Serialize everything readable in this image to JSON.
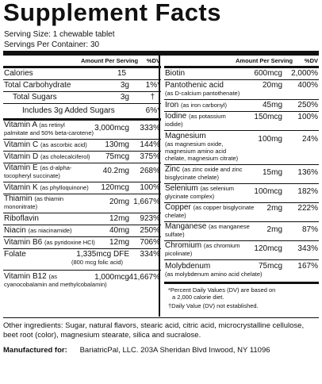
{
  "title": "Supplement Facts",
  "serving_size": "Serving Size: 1 chewable tablet",
  "servings_per_container": "Servings Per Container: 30",
  "headers": {
    "amount": "Amount Per Serving",
    "dv": "%DV"
  },
  "left": [
    {
      "name": "Calories",
      "amount": "15",
      "dv": ""
    },
    {
      "name": "Total Carbohydrate",
      "amount": "3g",
      "dv": "1%*"
    },
    {
      "name": "Total Sugars",
      "amount": "3g",
      "dv": "†"
    },
    {
      "name": "Includes 3g Added Sugars",
      "amount": "",
      "dv": "6%*"
    },
    {
      "name": "Vitamin A",
      "small": "(as retinyl",
      "sub": "palmitate and 50% beta-carotene)",
      "amount": "3,000mcg",
      "dv": "333%"
    },
    {
      "name": "Vitamin C",
      "small": "(as ascorbic acid)",
      "amount": "130mg",
      "dv": "144%"
    },
    {
      "name": "Vitamin D",
      "small": "(as cholecalciferol)",
      "amount": "75mcg",
      "dv": "375%"
    },
    {
      "name": "Vitamin E",
      "small": "(as d-alpha-",
      "sub": "tocopheryl succinate)",
      "amount": "40.2mg",
      "dv": "268%"
    },
    {
      "name": "Vitamin K",
      "small": "(as phylloquinone)",
      "amount": "120mcg",
      "dv": "100%"
    },
    {
      "name": "Thiamin",
      "small": "(as thiamin",
      "sub": "mononitrate)",
      "amount": "20mg",
      "dv": "1,667%"
    },
    {
      "name": "Riboflavin",
      "amount": "12mg",
      "dv": "923%"
    },
    {
      "name": "Niacin",
      "small": "(as niacinamide)",
      "amount": "40mg",
      "dv": "250%"
    },
    {
      "name": "Vitamin B6",
      "small": "(as pyridoxine HCl)",
      "amount": "12mg",
      "dv": "706%"
    },
    {
      "name": "Folate",
      "amount": "1,335mcg DFE",
      "sub2": "(800 mcg folic acid)",
      "dv": "334%"
    },
    {
      "name": "Vitamin B12",
      "small": "(as",
      "sub": "cyanocobalamin and methylcobalamin)",
      "amount": "1,000mcg",
      "dv": "41,667%"
    }
  ],
  "right": [
    {
      "name": "Biotin",
      "amount": "600mcg",
      "dv": "2,000%"
    },
    {
      "name": "Pantothenic acid",
      "sub": "(as D-calcium pantothenate)",
      "amount": "20mg",
      "dv": "400%"
    },
    {
      "name": "Iron",
      "small": "(as iron carbonyl)",
      "amount": "45mg",
      "dv": "250%"
    },
    {
      "name": "Iodine",
      "small": "(as potassium",
      "sub": "iodide)",
      "amount": "150mcg",
      "dv": "100%"
    },
    {
      "name": "Magnesium",
      "sub": "(as magnesium oxide,",
      "sub3": "magnesium amino acid",
      "sub4": "chelate, magnesium citrate)",
      "amount": "100mg",
      "dv": "24%"
    },
    {
      "name": "Zinc",
      "small": "(as zinc oxide and zinc",
      "sub": "bisglycinate chelate)",
      "amount": "15mg",
      "dv": "136%"
    },
    {
      "name": "Selenium",
      "small": "(as selenium",
      "sub": "glycinate complex)",
      "amount": "100mcg",
      "dv": "182%"
    },
    {
      "name": "Copper",
      "small": "(as copper bisglycinate",
      "sub": "chelate)",
      "amount": "2mg",
      "dv": "222%"
    },
    {
      "name": "Manganese",
      "small": "(as manganese",
      "sub": "sulfate)",
      "amount": "2mg",
      "dv": "87%"
    },
    {
      "name": "Chromium",
      "small": "(as chromium",
      "sub": "picolinate)",
      "amount": "120mcg",
      "dv": "343%"
    },
    {
      "name": "Molybdenum",
      "sub": "(as molybdenum amino acid chelate)",
      "amount": "75mcg",
      "dv": "167%"
    }
  ],
  "footnote1": "*Percent Daily Values (DV) are based on",
  "footnote2": "a 2,000 calorie diet.",
  "footnote3": "†Daily Value (DV) not established.",
  "other_ingredients_1": "Other ingredients: Sugar, natural flavors, stearic acid, citric acid, microcrystalline cellulose,",
  "other_ingredients_2": "beet root (color), magnesium stearate, silica and sucralose.",
  "manufactured_label": "Manufactured for:",
  "manufactured_value": "BariatricPal, LLC. 203A Sheridan Blvd  Inwood, NY 11096"
}
